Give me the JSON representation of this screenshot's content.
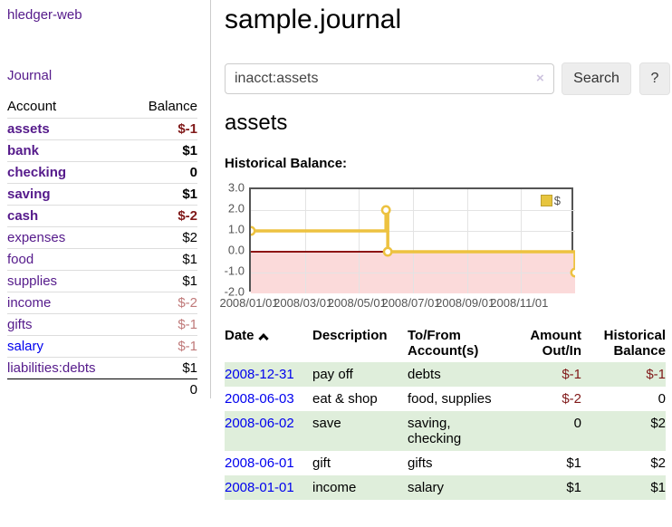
{
  "sidebar": {
    "app_title": "hledger-web",
    "journal_label": "Journal",
    "accounts_header": {
      "account": "Account",
      "balance": "Balance"
    },
    "accounts": [
      {
        "name": "assets",
        "balance": "$-1",
        "indent": 1,
        "bold": true,
        "link_color": "purple",
        "balance_style": "neg-strong"
      },
      {
        "name": "bank",
        "balance": "$1",
        "indent": 2,
        "bold": true,
        "link_color": "purple",
        "balance_style": "strong"
      },
      {
        "name": "checking",
        "balance": "0",
        "indent": 3,
        "bold": true,
        "link_color": "purple",
        "balance_style": "strong"
      },
      {
        "name": "saving",
        "balance": "$1",
        "indent": 3,
        "bold": true,
        "link_color": "purple",
        "balance_style": "strong"
      },
      {
        "name": "cash",
        "balance": "$-2",
        "indent": 2,
        "bold": true,
        "link_color": "purple",
        "balance_style": "neg-strong"
      },
      {
        "name": "expenses",
        "balance": "$2",
        "indent": 1,
        "bold": false,
        "link_color": "purple",
        "balance_style": "normal"
      },
      {
        "name": "food",
        "balance": "$1",
        "indent": 2,
        "bold": false,
        "link_color": "purple",
        "balance_style": "normal"
      },
      {
        "name": "supplies",
        "balance": "$1",
        "indent": 2,
        "bold": false,
        "link_color": "purple",
        "balance_style": "normal"
      },
      {
        "name": "income",
        "balance": "$-2",
        "indent": 1,
        "bold": false,
        "link_color": "purple",
        "balance_style": "neg-muted"
      },
      {
        "name": "gifts",
        "balance": "$-1",
        "indent": 2,
        "bold": false,
        "link_color": "purple",
        "balance_style": "neg-muted"
      },
      {
        "name": "salary",
        "balance": "$-1",
        "indent": 2,
        "bold": false,
        "link_color": "blue",
        "balance_style": "neg-muted"
      },
      {
        "name": "liabilities:debts",
        "balance": "$1",
        "indent": 1,
        "bold": false,
        "link_color": "purple",
        "balance_style": "normal"
      }
    ],
    "total": "0"
  },
  "header": {
    "title": "sample.journal"
  },
  "search": {
    "value": "inacct:assets",
    "clear_icon": "×",
    "button_label": "Search",
    "help_label": "?"
  },
  "account_page": {
    "heading": "assets",
    "chart_label": "Historical Balance:"
  },
  "chart_data": {
    "type": "line",
    "step": true,
    "title": "Historical Balance",
    "legend": "$",
    "legend_position": "top-right",
    "grid": true,
    "ylim": [
      -2.0,
      3.0
    ],
    "y_ticks": [
      "3.0",
      "2.0",
      "1.0",
      "0.0",
      "-1.0",
      "-2.0"
    ],
    "x_ticks": [
      "2008/01/01",
      "2008/03/01",
      "2008/05/01",
      "2008/07/01",
      "2008/09/01",
      "2008/11/01"
    ],
    "series": [
      {
        "name": "$",
        "points": [
          {
            "x": "2008-01-01",
            "y": 1
          },
          {
            "x": "2008-06-01",
            "y": 2
          },
          {
            "x": "2008-06-03",
            "y": 0
          },
          {
            "x": "2008-12-31",
            "y": -1
          }
        ]
      }
    ],
    "colors": {
      "line": "#edc240",
      "negative_fill": "#fbdada",
      "zero_line": "#8e1414",
      "grid": "#e3e3e3",
      "axis": "#545454"
    }
  },
  "register": {
    "headers": {
      "date": "Date",
      "description": "Description",
      "accounts_line1": "To/From",
      "accounts_line2": "Account(s)",
      "amount_line1": "Amount",
      "amount_line2": "Out/In",
      "balance_line1": "Historical",
      "balance_line2": "Balance"
    },
    "rows": [
      {
        "date": "2008-12-31",
        "description": "pay off",
        "accounts": "debts",
        "amount": "$-1",
        "balance": "$-1"
      },
      {
        "date": "2008-06-03",
        "description": "eat & shop",
        "accounts": "food, supplies",
        "amount": "$-2",
        "balance": "0"
      },
      {
        "date": "2008-06-02",
        "description": "save",
        "accounts": "saving, checking",
        "amount": "0",
        "balance": "$2"
      },
      {
        "date": "2008-06-01",
        "description": "gift",
        "accounts": "gifts",
        "amount": "$1",
        "balance": "$2"
      },
      {
        "date": "2008-01-01",
        "description": "income",
        "accounts": "salary",
        "amount": "$1",
        "balance": "$1"
      }
    ]
  }
}
